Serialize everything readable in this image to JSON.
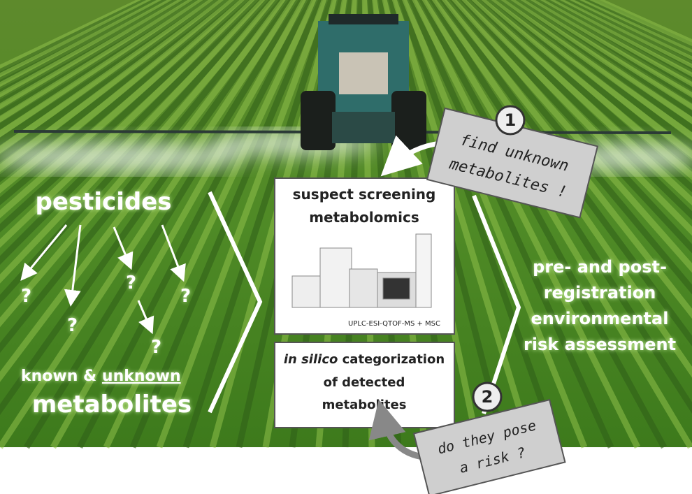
{
  "left": {
    "title": "pesticides",
    "question_marks": [
      "?",
      "?",
      "?",
      "?",
      "?",
      "?"
    ],
    "known": "known &",
    "unknown": "unknown",
    "metabolites": "metabolites"
  },
  "box1": {
    "line1": "suspect screening",
    "line2": "metabolomics",
    "caption": "UPLC-ESI-QTOF-MS + MSC"
  },
  "box2": {
    "italic": "in silico",
    "line1": "categorization",
    "line2": "of detected",
    "line3": "metabolites"
  },
  "callout1": {
    "number": "1",
    "line1": "find unknown",
    "line2": "metabolites !"
  },
  "callout2": {
    "number": "2",
    "line1": "do they pose",
    "line2": "a risk ?"
  },
  "right": {
    "lines": [
      "pre- and post-",
      "registration",
      "environmental",
      "risk assessment"
    ]
  }
}
